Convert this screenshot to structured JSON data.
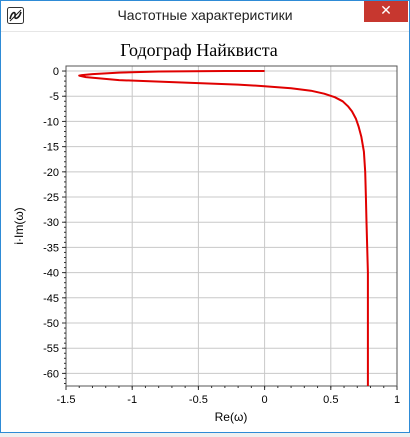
{
  "window": {
    "title": "Частотные характеристики",
    "close_glyph": "✕",
    "app_icon": "app-logo-icon"
  },
  "chart_data": {
    "type": "line",
    "title": "Годограф Найквиста",
    "xlabel": "Re(ω)",
    "ylabel": "i·Im(ω)",
    "xlim": [
      -1.5,
      1
    ],
    "ylim": [
      -62.5,
      1
    ],
    "grid": true,
    "x_ticks": [
      -1.5,
      -1,
      -0.5,
      0,
      0.5,
      1
    ],
    "x_tick_labels": [
      "-1.5",
      "-1",
      "-0.5",
      "0",
      "0.5",
      "1"
    ],
    "y_ticks": [
      0,
      -5,
      -10,
      -15,
      -20,
      -25,
      -30,
      -35,
      -40,
      -45,
      -50,
      -55,
      -60
    ],
    "y_tick_labels": [
      "0",
      "-5",
      "-10",
      "-15",
      "-20",
      "-25",
      "-30",
      "-35",
      "-40",
      "-45",
      "-50",
      "-55",
      "-60"
    ],
    "series": [
      {
        "color": "#e00000",
        "x": [
          0,
          -0.3,
          -0.8,
          -1.1,
          -1.3,
          -1.38,
          -1.4,
          -1.35,
          -1.1,
          -0.6,
          -0.2,
          0,
          0.2,
          0.35,
          0.45,
          0.53,
          0.59,
          0.63,
          0.66,
          0.69,
          0.71,
          0.73,
          0.75,
          0.76,
          0.765,
          0.77,
          0.775,
          0.78,
          0.78,
          0.78,
          0.78,
          0.78
        ],
        "y": [
          0,
          0,
          -0.1,
          -0.3,
          -0.6,
          -0.8,
          -0.9,
          -1.2,
          -1.8,
          -2.3,
          -2.7,
          -3,
          -3.4,
          -3.9,
          -4.5,
          -5.2,
          -6,
          -7,
          -8,
          -9.5,
          -11,
          -13,
          -16,
          -20,
          -25,
          -30,
          -35,
          -40,
          -45,
          -50,
          -55,
          -62.5
        ]
      }
    ]
  }
}
